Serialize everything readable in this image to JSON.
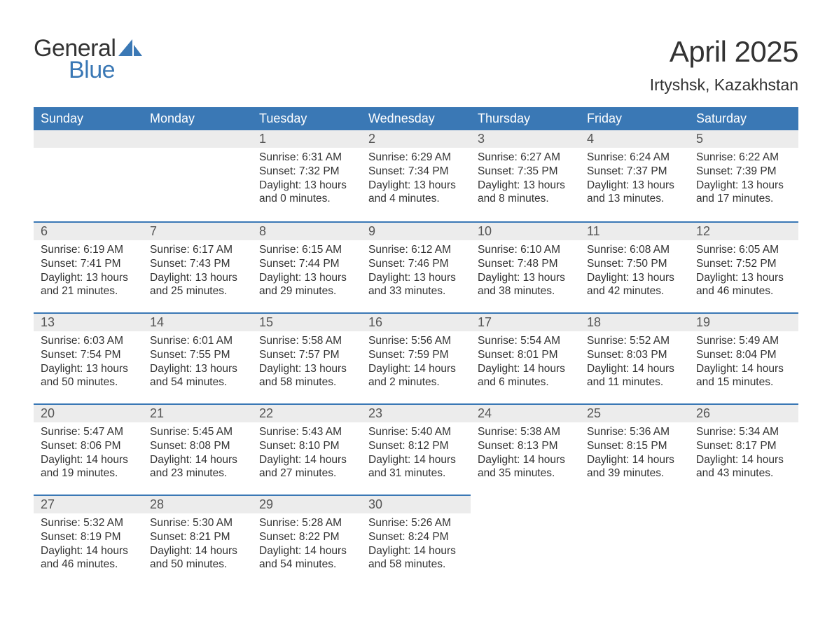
{
  "logo": {
    "text_general": "General",
    "text_blue": "Blue",
    "sail_color": "#3a78b5",
    "general_color": "#333333",
    "blue_color": "#3a78b5"
  },
  "title": "April 2025",
  "location": "Irtyshsk, Kazakhstan",
  "colors": {
    "header_bg": "#3a78b5",
    "header_text": "#ffffff",
    "band_bg": "#ececec",
    "band_border": "#3a78b5",
    "text": "#333333",
    "page_bg": "#ffffff"
  },
  "typography": {
    "title_fontsize": 42,
    "location_fontsize": 23,
    "th_fontsize": 18,
    "daynum_fontsize": 18,
    "body_fontsize": 15.5,
    "logo_fontsize": 34
  },
  "weekdays": [
    "Sunday",
    "Monday",
    "Tuesday",
    "Wednesday",
    "Thursday",
    "Friday",
    "Saturday"
  ],
  "weeks": [
    [
      null,
      null,
      {
        "n": "1",
        "sr": "Sunrise: 6:31 AM",
        "ss": "Sunset: 7:32 PM",
        "dl": "Daylight: 13 hours and 0 minutes."
      },
      {
        "n": "2",
        "sr": "Sunrise: 6:29 AM",
        "ss": "Sunset: 7:34 PM",
        "dl": "Daylight: 13 hours and 4 minutes."
      },
      {
        "n": "3",
        "sr": "Sunrise: 6:27 AM",
        "ss": "Sunset: 7:35 PM",
        "dl": "Daylight: 13 hours and 8 minutes."
      },
      {
        "n": "4",
        "sr": "Sunrise: 6:24 AM",
        "ss": "Sunset: 7:37 PM",
        "dl": "Daylight: 13 hours and 13 minutes."
      },
      {
        "n": "5",
        "sr": "Sunrise: 6:22 AM",
        "ss": "Sunset: 7:39 PM",
        "dl": "Daylight: 13 hours and 17 minutes."
      }
    ],
    [
      {
        "n": "6",
        "sr": "Sunrise: 6:19 AM",
        "ss": "Sunset: 7:41 PM",
        "dl": "Daylight: 13 hours and 21 minutes."
      },
      {
        "n": "7",
        "sr": "Sunrise: 6:17 AM",
        "ss": "Sunset: 7:43 PM",
        "dl": "Daylight: 13 hours and 25 minutes."
      },
      {
        "n": "8",
        "sr": "Sunrise: 6:15 AM",
        "ss": "Sunset: 7:44 PM",
        "dl": "Daylight: 13 hours and 29 minutes."
      },
      {
        "n": "9",
        "sr": "Sunrise: 6:12 AM",
        "ss": "Sunset: 7:46 PM",
        "dl": "Daylight: 13 hours and 33 minutes."
      },
      {
        "n": "10",
        "sr": "Sunrise: 6:10 AM",
        "ss": "Sunset: 7:48 PM",
        "dl": "Daylight: 13 hours and 38 minutes."
      },
      {
        "n": "11",
        "sr": "Sunrise: 6:08 AM",
        "ss": "Sunset: 7:50 PM",
        "dl": "Daylight: 13 hours and 42 minutes."
      },
      {
        "n": "12",
        "sr": "Sunrise: 6:05 AM",
        "ss": "Sunset: 7:52 PM",
        "dl": "Daylight: 13 hours and 46 minutes."
      }
    ],
    [
      {
        "n": "13",
        "sr": "Sunrise: 6:03 AM",
        "ss": "Sunset: 7:54 PM",
        "dl": "Daylight: 13 hours and 50 minutes."
      },
      {
        "n": "14",
        "sr": "Sunrise: 6:01 AM",
        "ss": "Sunset: 7:55 PM",
        "dl": "Daylight: 13 hours and 54 minutes."
      },
      {
        "n": "15",
        "sr": "Sunrise: 5:58 AM",
        "ss": "Sunset: 7:57 PM",
        "dl": "Daylight: 13 hours and 58 minutes."
      },
      {
        "n": "16",
        "sr": "Sunrise: 5:56 AM",
        "ss": "Sunset: 7:59 PM",
        "dl": "Daylight: 14 hours and 2 minutes."
      },
      {
        "n": "17",
        "sr": "Sunrise: 5:54 AM",
        "ss": "Sunset: 8:01 PM",
        "dl": "Daylight: 14 hours and 6 minutes."
      },
      {
        "n": "18",
        "sr": "Sunrise: 5:52 AM",
        "ss": "Sunset: 8:03 PM",
        "dl": "Daylight: 14 hours and 11 minutes."
      },
      {
        "n": "19",
        "sr": "Sunrise: 5:49 AM",
        "ss": "Sunset: 8:04 PM",
        "dl": "Daylight: 14 hours and 15 minutes."
      }
    ],
    [
      {
        "n": "20",
        "sr": "Sunrise: 5:47 AM",
        "ss": "Sunset: 8:06 PM",
        "dl": "Daylight: 14 hours and 19 minutes."
      },
      {
        "n": "21",
        "sr": "Sunrise: 5:45 AM",
        "ss": "Sunset: 8:08 PM",
        "dl": "Daylight: 14 hours and 23 minutes."
      },
      {
        "n": "22",
        "sr": "Sunrise: 5:43 AM",
        "ss": "Sunset: 8:10 PM",
        "dl": "Daylight: 14 hours and 27 minutes."
      },
      {
        "n": "23",
        "sr": "Sunrise: 5:40 AM",
        "ss": "Sunset: 8:12 PM",
        "dl": "Daylight: 14 hours and 31 minutes."
      },
      {
        "n": "24",
        "sr": "Sunrise: 5:38 AM",
        "ss": "Sunset: 8:13 PM",
        "dl": "Daylight: 14 hours and 35 minutes."
      },
      {
        "n": "25",
        "sr": "Sunrise: 5:36 AM",
        "ss": "Sunset: 8:15 PM",
        "dl": "Daylight: 14 hours and 39 minutes."
      },
      {
        "n": "26",
        "sr": "Sunrise: 5:34 AM",
        "ss": "Sunset: 8:17 PM",
        "dl": "Daylight: 14 hours and 43 minutes."
      }
    ],
    [
      {
        "n": "27",
        "sr": "Sunrise: 5:32 AM",
        "ss": "Sunset: 8:19 PM",
        "dl": "Daylight: 14 hours and 46 minutes."
      },
      {
        "n": "28",
        "sr": "Sunrise: 5:30 AM",
        "ss": "Sunset: 8:21 PM",
        "dl": "Daylight: 14 hours and 50 minutes."
      },
      {
        "n": "29",
        "sr": "Sunrise: 5:28 AM",
        "ss": "Sunset: 8:22 PM",
        "dl": "Daylight: 14 hours and 54 minutes."
      },
      {
        "n": "30",
        "sr": "Sunrise: 5:26 AM",
        "ss": "Sunset: 8:24 PM",
        "dl": "Daylight: 14 hours and 58 minutes."
      },
      null,
      null,
      null
    ]
  ]
}
